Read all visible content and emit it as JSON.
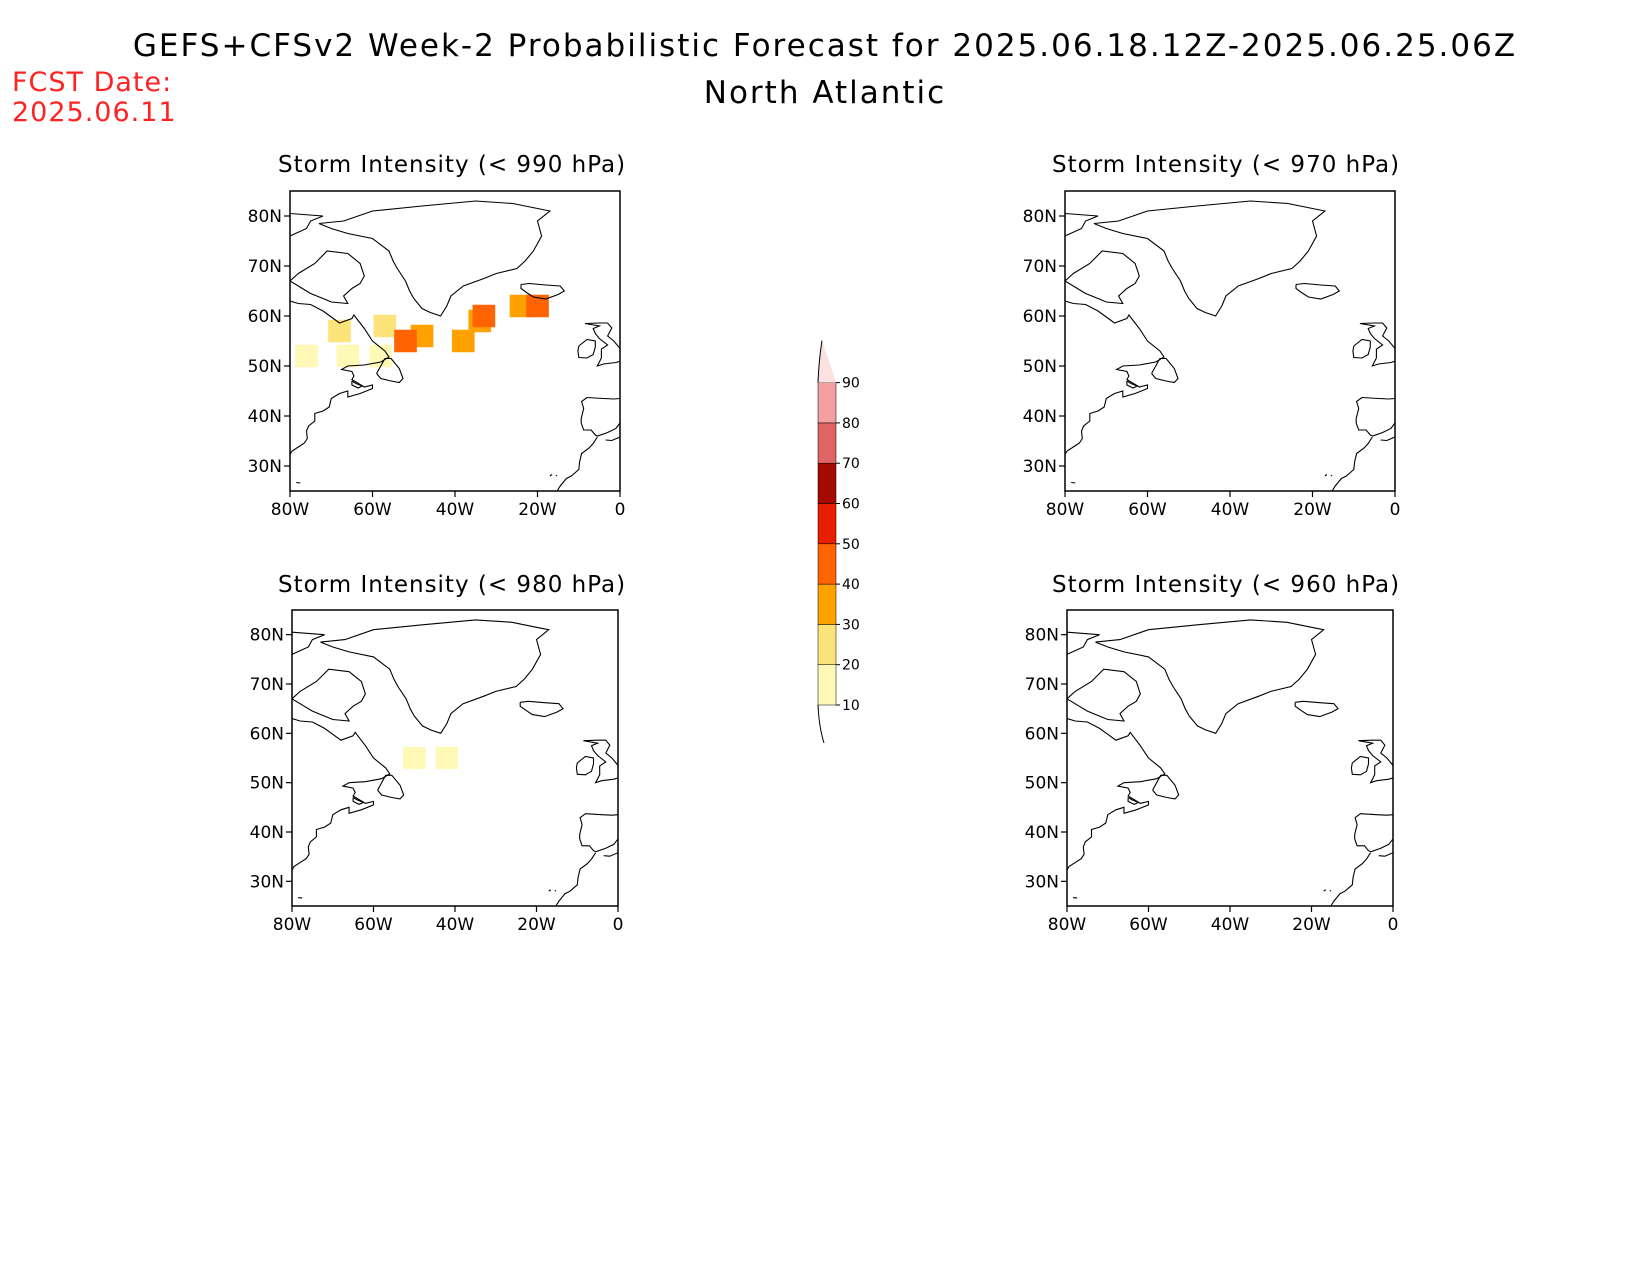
{
  "title": "GEFS+CFSv2 Week-2 Probabilistic Forecast for 2025.06.18.12Z-2025.06.25.06Z",
  "subtitle": "North Atlantic",
  "fcst_date": {
    "label": "FCST Date:",
    "value": "2025.06.11"
  },
  "panels": [
    {
      "title": "Storm Intensity (< 990 hPa)"
    },
    {
      "title": "Storm Intensity (< 970 hPa)"
    },
    {
      "title": "Storm Intensity (< 980 hPa)"
    },
    {
      "title": "Storm Intensity (< 960 hPa)"
    }
  ],
  "lat_ticks": [
    "80N",
    "70N",
    "60N",
    "50N",
    "40N",
    "30N"
  ],
  "lon_ticks": [
    "80W",
    "60W",
    "40W",
    "20W",
    "0"
  ],
  "colorbar": {
    "levels": [
      "10",
      "20",
      "30",
      "40",
      "50",
      "60",
      "70",
      "80",
      "90"
    ],
    "colors": [
      "#fff9b8",
      "#fde47a",
      "#ffa200",
      "#ff6400",
      "#e81e00",
      "#a50a00",
      "#e06464",
      "#f5a0a0",
      "#fde0e0"
    ]
  },
  "chart_data": {
    "type": "heatmap",
    "region": "North Atlantic",
    "lon_range": [
      -80,
      0
    ],
    "lat_range": [
      25,
      85
    ],
    "panels": [
      {
        "threshold_hPa": 990,
        "probability_blobs": [
          {
            "lon": -76,
            "lat": 52,
            "prob": 15
          },
          {
            "lon": -66,
            "lat": 52,
            "prob": 12
          },
          {
            "lon": -58,
            "lat": 52,
            "prob": 18
          },
          {
            "lon": -68,
            "lat": 57,
            "prob": 28
          },
          {
            "lon": -57,
            "lat": 58,
            "prob": 25
          },
          {
            "lon": -48,
            "lat": 56,
            "prob": 35
          },
          {
            "lon": -38,
            "lat": 55,
            "prob": 38
          },
          {
            "lon": -34,
            "lat": 59,
            "prob": 35
          },
          {
            "lon": -24,
            "lat": 62,
            "prob": 35
          },
          {
            "lon": -52,
            "lat": 55,
            "prob": 42
          },
          {
            "lon": -33,
            "lat": 60,
            "prob": 42
          },
          {
            "lon": -20,
            "lat": 62,
            "prob": 42
          }
        ]
      },
      {
        "threshold_hPa": 970,
        "probability_blobs": []
      },
      {
        "threshold_hPa": 980,
        "probability_blobs": [
          {
            "lon": -50,
            "lat": 55,
            "prob": 12
          },
          {
            "lon": -42,
            "lat": 55,
            "prob": 10
          }
        ]
      },
      {
        "threshold_hPa": 960,
        "probability_blobs": []
      }
    ]
  }
}
